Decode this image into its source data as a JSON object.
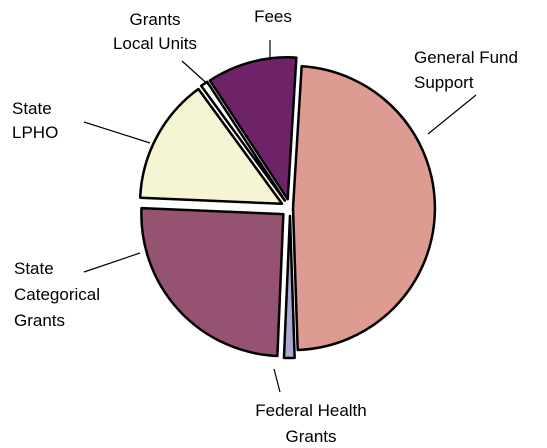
{
  "chart_data": {
    "type": "pie",
    "title": "",
    "slices": [
      {
        "label_lines": [
          "General Fund",
          "Support"
        ],
        "value": 48.5,
        "color": "#dd9b91"
      },
      {
        "label_lines": [
          "Federal Health",
          "Grants"
        ],
        "value": 1.2,
        "color": "#a9a9d4"
      },
      {
        "label_lines": [
          "State",
          "Categorical",
          "Grants"
        ],
        "value": 25.0,
        "color": "#955271"
      },
      {
        "label_lines": [
          "State",
          "LPHO"
        ],
        "value": 14.3,
        "color": "#f5f5d4"
      },
      {
        "label_lines": [
          "Grants",
          "Local Units"
        ],
        "value": 0.8,
        "color": "#ffffff"
      },
      {
        "label_lines": [
          "Fees"
        ],
        "value": 10.2,
        "color": "#6e2369"
      }
    ]
  }
}
